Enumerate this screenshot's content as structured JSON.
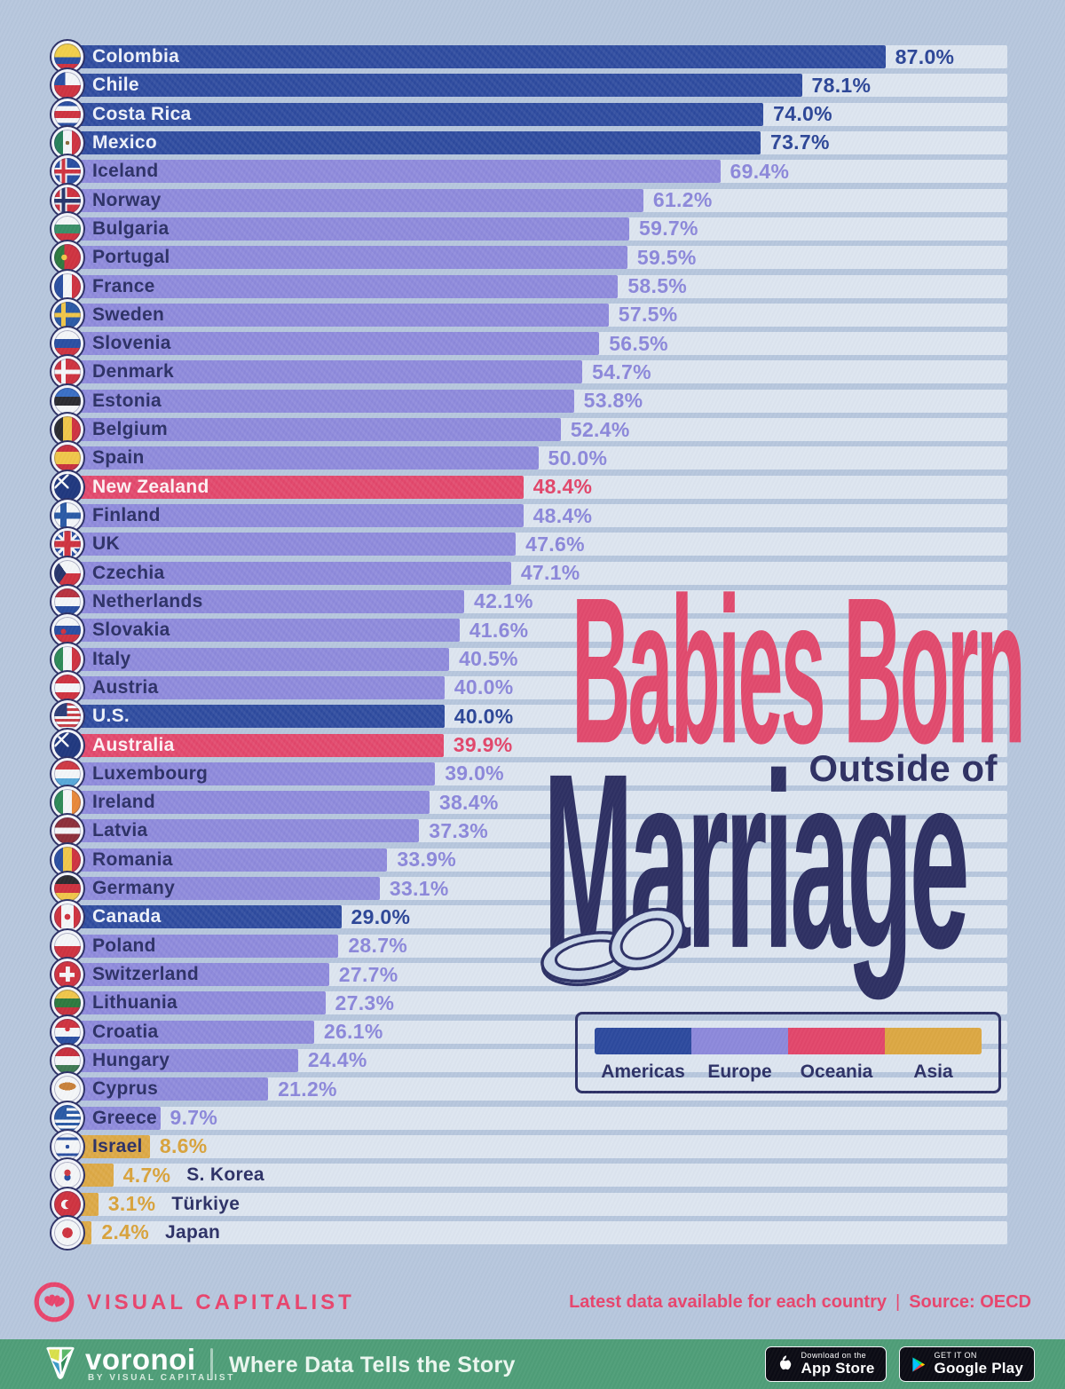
{
  "colors": {
    "page_bg": "#b7c7dd",
    "track": "#dde5f0",
    "navy": "#2d3166",
    "title_pink": "#e14a6d",
    "title_navy": "#2e3063",
    "green_bar": "#4f9e78",
    "footer_pink": "#e8456d",
    "region": {
      "americas": {
        "bar": "#2d4a9e",
        "value": "#2c4697",
        "label": "#eef2fa"
      },
      "europe": {
        "bar": "#8d89db",
        "value": "#8c88da",
        "label": "#2d3166"
      },
      "oceania": {
        "bar": "#e2476b",
        "value": "#e2476b",
        "label": "#fdf2f4"
      },
      "asia": {
        "bar": "#dca843",
        "value": "#d9a33c",
        "label": "#2d3166"
      }
    }
  },
  "chart": {
    "title_line1": "Babies Born",
    "title_line2": "Outside of",
    "title_line3": "Marriage",
    "flags": {
      "Colombia": {
        "i": "linear-gradient(180deg,#f2cf4a 0 52%,#2a4fa2 52% 76%,#cf3340 76%)",
        "c": "#f2cf4a"
      },
      "Chile": {
        "i": "conic-gradient(at 42% 50%,rgba(0,0,0,0) 0 270deg,#2a4fa2 270deg),linear-gradient(180deg,rgba(0,0,0,0) 0 50%,#cf3340 50%)",
        "c": "#f4f6f8"
      },
      "Costa Rica": {
        "i": "linear-gradient(180deg,#2a4fa2 0 18%,#f4f6f8 18% 37%,#cf3340 37% 63%,#f4f6f8 63% 82%,#2a4fa2 82%)",
        "c": "#f4f6f8"
      },
      "Mexico": {
        "i": "radial-gradient(circle at 50% 50%,#8a6a3a 0 10%,rgba(0,0,0,0) 11%),linear-gradient(90deg,#27825a 0 34%,#f4f6f8 34% 66%,#cf3340 66%)",
        "c": "#f4f6f8"
      },
      "Iceland": {
        "i": "linear-gradient(90deg,rgba(0,0,0,0) 0 28%,#cf3340 28% 42%,rgba(0,0,0,0) 42%),linear-gradient(180deg,rgba(0,0,0,0) 0 44%,#cf3340 44% 58%,rgba(0,0,0,0) 58%),linear-gradient(90deg,rgba(0,0,0,0) 0 22%,#f4f6f8 22% 48%,rgba(0,0,0,0) 48%),linear-gradient(180deg,rgba(0,0,0,0) 0 37%,#f4f6f8 37% 65%,rgba(0,0,0,0) 65%)",
        "c": "#2a4fa2"
      },
      "Norway": {
        "i": "linear-gradient(90deg,rgba(0,0,0,0) 0 28%,#27356b 28% 42%,rgba(0,0,0,0) 42%),linear-gradient(180deg,rgba(0,0,0,0) 0 44%,#27356b 44% 58%,rgba(0,0,0,0) 58%),linear-gradient(90deg,rgba(0,0,0,0) 0 22%,#f4f6f8 22% 48%,rgba(0,0,0,0) 48%),linear-gradient(180deg,rgba(0,0,0,0) 0 37%,#f4f6f8 37% 65%,rgba(0,0,0,0) 65%)",
        "c": "#cf3340"
      },
      "Bulgaria": {
        "i": "linear-gradient(180deg,#f4f6f8 0 34%,#3a8f68 34% 67%,#cf3340 67%)",
        "c": "#f4f6f8"
      },
      "Portugal": {
        "i": "radial-gradient(circle at 38% 50%,#f0c64a 0 13%,rgba(0,0,0,0) 14%),linear-gradient(90deg,#2e7a3f 0 38%,#cf3340 38%)",
        "c": "#cf3340"
      },
      "France": {
        "i": "linear-gradient(90deg,#2a4fa2 0 34%,#f4f6f8 34% 66%,#cf3340 66%)",
        "c": "#f4f6f8"
      },
      "Sweden": {
        "i": "linear-gradient(90deg,rgba(0,0,0,0) 0 26%,#f0c64a 26% 44%,rgba(0,0,0,0) 44%),linear-gradient(180deg,rgba(0,0,0,0) 0 41%,#f0c64a 41% 59%,rgba(0,0,0,0) 59%)",
        "c": "#2a5aa6"
      },
      "Slovenia": {
        "i": "linear-gradient(180deg,#f4f6f8 0 34%,#2a4fa2 34% 67%,#cf3340 67%)",
        "c": "#f4f6f8"
      },
      "Denmark": {
        "i": "linear-gradient(90deg,rgba(0,0,0,0) 0 26%,#f4f6f8 26% 44%,rgba(0,0,0,0) 44%),linear-gradient(180deg,rgba(0,0,0,0) 0 41%,#f4f6f8 41% 59%,rgba(0,0,0,0) 59%)",
        "c": "#cf3340"
      },
      "Estonia": {
        "i": "linear-gradient(180deg,#3a6fc4 0 34%,#2b2b30 34% 67%,#f4f6f8 67%)",
        "c": "#f4f6f8"
      },
      "Belgium": {
        "i": "linear-gradient(90deg,#2b2b30 0 34%,#f0c64a 34% 66%,#cf3340 66%)",
        "c": "#f0c64a"
      },
      "Spain": {
        "i": "linear-gradient(180deg,#c8313e 0 26%,#f0c64a 26% 74%,#c8313e 74%)",
        "c": "#f0c64a"
      },
      "New Zealand": {
        "i": "linear-gradient(45deg,rgba(0,0,0,0) 0 44%,#f4f6f8 44% 56%,rgba(0,0,0,0) 56%),linear-gradient(135deg,rgba(0,0,0,0) 0 44%,#f4f6f8 44% 56%,rgba(0,0,0,0) 56%)",
        "s": "55% 55%,55% 55%",
        "r": "no-repeat,no-repeat",
        "p": "0 0,0 0",
        "c": "#20387f"
      },
      "Finland": {
        "i": "linear-gradient(90deg,rgba(0,0,0,0) 0 24%,#2a5aa6 24% 46%,rgba(0,0,0,0) 46%),linear-gradient(180deg,rgba(0,0,0,0) 0 39%,#2a5aa6 39% 61%,rgba(0,0,0,0) 61%)",
        "c": "#f4f6f8"
      },
      "UK": {
        "i": "linear-gradient(90deg,rgba(0,0,0,0) 0 39%,#cf3340 39% 61%,rgba(0,0,0,0) 61%),linear-gradient(180deg,rgba(0,0,0,0) 0 39%,#cf3340 39% 61%,rgba(0,0,0,0) 61%),linear-gradient(90deg,rgba(0,0,0,0) 0 33%,#f4f6f8 33% 67%,rgba(0,0,0,0) 67%),linear-gradient(180deg,rgba(0,0,0,0) 0 33%,#f4f6f8 33% 67%,rgba(0,0,0,0) 67%),linear-gradient(45deg,rgba(0,0,0,0) 0 46%,#f4f6f8 46% 54%,rgba(0,0,0,0) 54%),linear-gradient(135deg,rgba(0,0,0,0) 0 46%,#f4f6f8 46% 54%,rgba(0,0,0,0) 54%)",
        "c": "#2a4fa2"
      },
      "Czechia": {
        "i": "conic-gradient(at 45% 50%,rgba(0,0,0,0) 0 215deg,#27356b 215deg 325deg,rgba(0,0,0,0) 325deg),linear-gradient(180deg,#f4f6f8 0 50%,#cf3340 50%)",
        "c": "#f4f6f8"
      },
      "Netherlands": {
        "i": "linear-gradient(180deg,#b83340 0 34%,#f4f6f8 34% 67%,#2a4fa2 67%)",
        "c": "#f4f6f8"
      },
      "Slovakia": {
        "i": "radial-gradient(circle at 35% 55%,#cf3340 0 11%,rgba(0,0,0,0) 12%),linear-gradient(180deg,#f4f6f8 0 34%,#2a4fa2 34% 67%,#cf3340 67%)",
        "c": "#f4f6f8"
      },
      "Italy": {
        "i": "linear-gradient(90deg,#2e8b57 0 34%,#f4f6f8 34% 66%,#cf3340 66%)",
        "c": "#f4f6f8"
      },
      "Austria": {
        "i": "linear-gradient(180deg,#cf3340 0 34%,#f4f6f8 34% 67%,#cf3340 67%)",
        "c": "#f4f6f8"
      },
      "U.S.": {
        "i": "conic-gradient(at 48% 50%,rgba(0,0,0,0) 0 270deg,#2c3c77 270deg),repeating-linear-gradient(180deg,#c84048 0 10%,#f4f6f8 10% 20%)",
        "c": "#f4f6f8"
      },
      "Australia": {
        "i": "linear-gradient(45deg,rgba(0,0,0,0) 0 44%,#f4f6f8 44% 56%,rgba(0,0,0,0) 56%),linear-gradient(135deg,rgba(0,0,0,0) 0 44%,#f4f6f8 44% 56%,rgba(0,0,0,0) 56%)",
        "s": "55% 55%,55% 55%",
        "r": "no-repeat,no-repeat",
        "p": "0 0,0 0",
        "c": "#20387f"
      },
      "Luxembourg": {
        "i": "linear-gradient(180deg,#cf3a44 0 34%,#f4f6f8 34% 67%,#58a8d8 67%)",
        "c": "#f4f6f8"
      },
      "Ireland": {
        "i": "linear-gradient(90deg,#2e8b57 0 34%,#f4f6f8 34% 66%,#e8883a 66%)",
        "c": "#f4f6f8"
      },
      "Latvia": {
        "i": "linear-gradient(180deg,#8e2f3a 0 38%,#f4f6f8 38% 62%,#8e2f3a 62%)",
        "c": "#f4f6f8"
      },
      "Romania": {
        "i": "linear-gradient(90deg,#2a4fa2 0 34%,#f0c64a 34% 66%,#cf3340 66%)",
        "c": "#f0c64a"
      },
      "Germany": {
        "i": "linear-gradient(180deg,#2b2b30 0 34%,#cf3340 34% 67%,#f0c64a 67%)",
        "c": "#f0c64a"
      },
      "Canada": {
        "i": "radial-gradient(circle at 50% 50%,#cf3340 0 15%,rgba(0,0,0,0) 16%),linear-gradient(90deg,#cf3340 0 26%,#f4f6f8 26% 74%,#cf3340 74%)",
        "c": "#f4f6f8"
      },
      "Poland": {
        "i": "linear-gradient(180deg,#f4f6f8 0 50%,#cf3340 50%)",
        "c": "#f4f6f8"
      },
      "Switzerland": {
        "i": "linear-gradient(#f4f6f8 0 0),linear-gradient(#f4f6f8 0 0)",
        "s": "16% 58%,58% 16%",
        "p": "50% 50%,50% 50%",
        "r": "no-repeat,no-repeat",
        "c": "#cf3340"
      },
      "Lithuania": {
        "i": "linear-gradient(180deg,#f0c64a 0 34%,#2e7a3f 34% 67%,#c8313e 67%)",
        "c": "#f0c64a"
      },
      "Croatia": {
        "i": "radial-gradient(circle at 50% 38%,#cf3340 0 11%,rgba(0,0,0,0) 12%),linear-gradient(180deg,#cf3340 0 34%,#f4f6f8 34% 67%,#2a4fa2 67%)",
        "c": "#f4f6f8"
      },
      "Hungary": {
        "i": "linear-gradient(180deg,#c8313e 0 34%,#f4f6f8 34% 67%,#3f7a52 67%)",
        "c": "#f4f6f8"
      },
      "Cyprus": {
        "i": "radial-gradient(ellipse 32% 15% at 50% 40%,#c8813a 99%,rgba(0,0,0,0) 100%)",
        "c": "#f4f6f8"
      },
      "Greece": {
        "i": "conic-gradient(at 46% 46%,rgba(0,0,0,0) 0 270deg,#2a5aa6 270deg),repeating-linear-gradient(180deg,#2a5aa6 0 11%,#f4f6f8 11% 22%)",
        "c": "#f4f6f8"
      },
      "Israel": {
        "i": "radial-gradient(circle at 50% 50%,#2a4fa2 0 10%,rgba(0,0,0,0) 11%),linear-gradient(180deg,rgba(0,0,0,0) 0 15%,#2a4fa2 15% 25%,rgba(0,0,0,0) 25% 75%,#2a4fa2 75% 85%,rgba(0,0,0,0) 85%)",
        "c": "#f4f6f8"
      },
      "S. Korea": {
        "i": "radial-gradient(circle at 50% 41%,#cf3a44 0 15%,rgba(0,0,0,0) 16%),radial-gradient(circle at 50% 59%,#2a4fa2 0 15%,rgba(0,0,0,0) 16%)",
        "c": "#f4f6f8"
      },
      "Türkiye": {
        "i": "radial-gradient(circle at 56% 50%,#cf3340 0 19%,rgba(0,0,0,0) 20%),radial-gradient(circle at 44% 50%,#f4f6f8 0 23%,rgba(0,0,0,0) 24%)",
        "c": "#cf3340"
      },
      "Japan": {
        "i": "radial-gradient(circle at 50% 50%,#cf3340 0 27%,rgba(0,0,0,0) 28%)",
        "c": "#f4f6f8"
      }
    }
  },
  "chart_data": {
    "type": "bar",
    "orientation": "horizontal",
    "title": "Babies Born Outside of Marriage",
    "unit": "%",
    "xlim": [
      0,
      100
    ],
    "note": "Latest data available for each country",
    "source": "OECD",
    "legend": [
      {
        "label": "Americas",
        "region": "americas",
        "color": "#2d4a9e"
      },
      {
        "label": "Europe",
        "region": "europe",
        "color": "#8d89db"
      },
      {
        "label": "Oceania",
        "region": "oceania",
        "color": "#e2476b"
      },
      {
        "label": "Asia",
        "region": "asia",
        "color": "#dca843"
      }
    ],
    "entries": [
      {
        "name": "Colombia",
        "value": 87.0,
        "region": "americas"
      },
      {
        "name": "Chile",
        "value": 78.1,
        "region": "americas"
      },
      {
        "name": "Costa Rica",
        "value": 74.0,
        "region": "americas"
      },
      {
        "name": "Mexico",
        "value": 73.7,
        "region": "americas"
      },
      {
        "name": "Iceland",
        "value": 69.4,
        "region": "europe"
      },
      {
        "name": "Norway",
        "value": 61.2,
        "region": "europe"
      },
      {
        "name": "Bulgaria",
        "value": 59.7,
        "region": "europe"
      },
      {
        "name": "Portugal",
        "value": 59.5,
        "region": "europe"
      },
      {
        "name": "France",
        "value": 58.5,
        "region": "europe"
      },
      {
        "name": "Sweden",
        "value": 57.5,
        "region": "europe"
      },
      {
        "name": "Slovenia",
        "value": 56.5,
        "region": "europe"
      },
      {
        "name": "Denmark",
        "value": 54.7,
        "region": "europe"
      },
      {
        "name": "Estonia",
        "value": 53.8,
        "region": "europe"
      },
      {
        "name": "Belgium",
        "value": 52.4,
        "region": "europe"
      },
      {
        "name": "Spain",
        "value": 50.0,
        "region": "europe"
      },
      {
        "name": "New Zealand",
        "value": 48.4,
        "region": "oceania"
      },
      {
        "name": "Finland",
        "value": 48.4,
        "region": "europe"
      },
      {
        "name": "UK",
        "value": 47.6,
        "region": "europe"
      },
      {
        "name": "Czechia",
        "value": 47.1,
        "region": "europe"
      },
      {
        "name": "Netherlands",
        "value": 42.1,
        "region": "europe"
      },
      {
        "name": "Slovakia",
        "value": 41.6,
        "region": "europe"
      },
      {
        "name": "Italy",
        "value": 40.5,
        "region": "europe"
      },
      {
        "name": "Austria",
        "value": 40.0,
        "region": "europe"
      },
      {
        "name": "U.S.",
        "value": 40.0,
        "region": "americas"
      },
      {
        "name": "Australia",
        "value": 39.9,
        "region": "oceania"
      },
      {
        "name": "Luxembourg",
        "value": 39.0,
        "region": "europe"
      },
      {
        "name": "Ireland",
        "value": 38.4,
        "region": "europe"
      },
      {
        "name": "Latvia",
        "value": 37.3,
        "region": "europe"
      },
      {
        "name": "Romania",
        "value": 33.9,
        "region": "europe"
      },
      {
        "name": "Germany",
        "value": 33.1,
        "region": "europe"
      },
      {
        "name": "Canada",
        "value": 29.0,
        "region": "americas"
      },
      {
        "name": "Poland",
        "value": 28.7,
        "region": "europe"
      },
      {
        "name": "Switzerland",
        "value": 27.7,
        "region": "europe"
      },
      {
        "name": "Lithuania",
        "value": 27.3,
        "region": "europe"
      },
      {
        "name": "Croatia",
        "value": 26.1,
        "region": "europe"
      },
      {
        "name": "Hungary",
        "value": 24.4,
        "region": "europe"
      },
      {
        "name": "Cyprus",
        "value": 21.2,
        "region": "europe"
      },
      {
        "name": "Greece",
        "value": 9.7,
        "region": "europe"
      },
      {
        "name": "Israel",
        "value": 8.6,
        "region": "asia"
      },
      {
        "name": "S. Korea",
        "value": 4.7,
        "region": "asia"
      },
      {
        "name": "Türkiye",
        "value": 3.1,
        "region": "asia"
      },
      {
        "name": "Japan",
        "value": 2.4,
        "region": "asia"
      }
    ]
  },
  "footer": {
    "brand": "VISUAL CAPITALIST",
    "note": "Latest data available for each country",
    "separator": "|",
    "source": "Source: OECD"
  },
  "bottom_bar": {
    "logo": "voronoi",
    "logo_sub": "BY VISUAL CAPITALIST",
    "tagline": "Where Data Tells the Story",
    "appstore_top": "Download on the",
    "appstore_bottom": "App Store",
    "googleplay_top": "GET IT ON",
    "googleplay_bottom": "Google Play"
  }
}
